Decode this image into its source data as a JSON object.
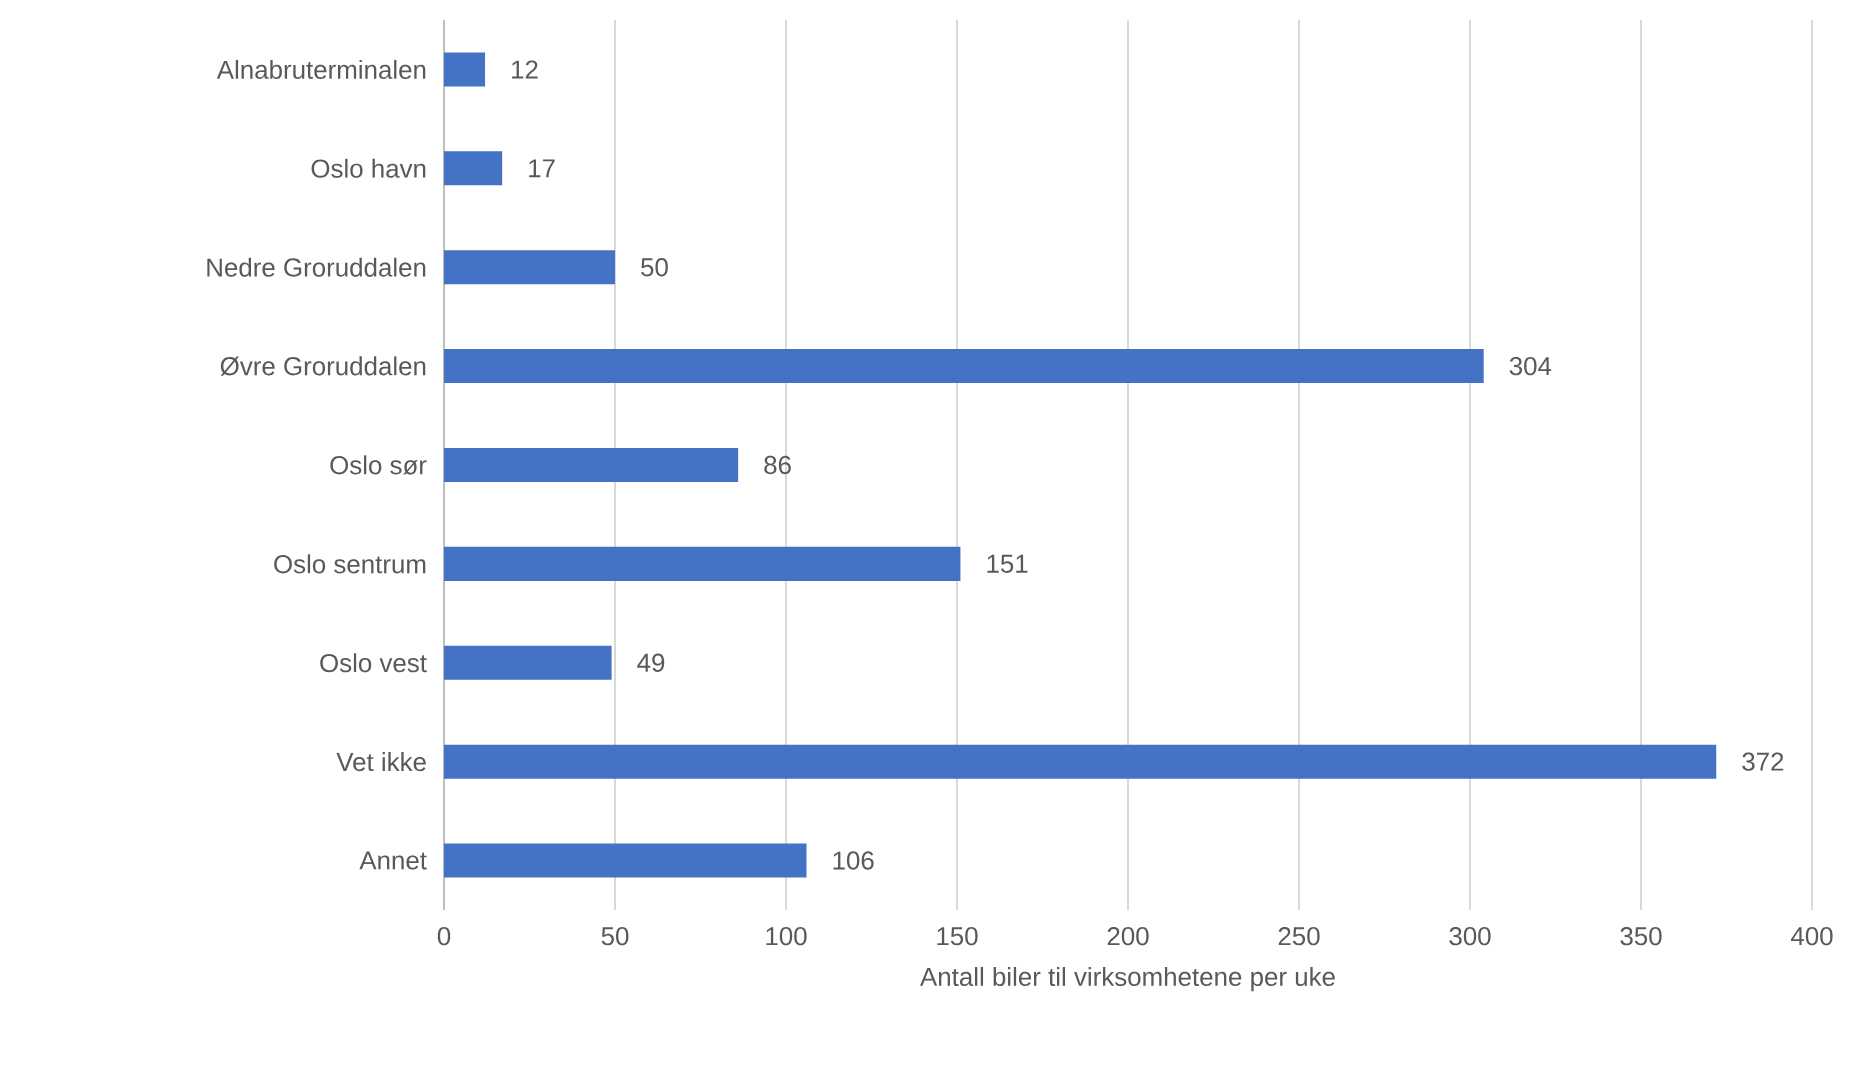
{
  "chart_data": {
    "type": "bar",
    "orientation": "horizontal",
    "categories": [
      "Alnabruterminalen",
      "Oslo havn",
      "Nedre Groruddalen",
      "Øvre Groruddalen",
      "Oslo sør",
      "Oslo sentrum",
      "Oslo vest",
      "Vet ikke",
      "Annet"
    ],
    "values": [
      12,
      17,
      50,
      304,
      86,
      151,
      49,
      372,
      106
    ],
    "color": "#4472c4",
    "xlabel": "Antall biler til virksomhetene per uke",
    "xlim": [
      0,
      400
    ],
    "xticks": [
      0,
      50,
      100,
      150,
      200,
      250,
      300,
      350,
      400
    ],
    "grid": "x",
    "data_labels": true
  }
}
